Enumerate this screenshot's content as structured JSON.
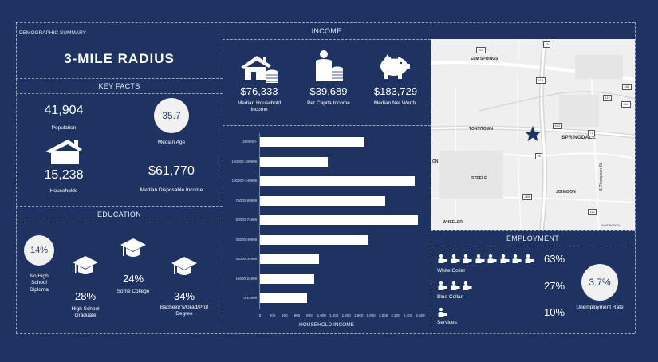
{
  "demographic": {
    "label": "DEMOGRAPHIC SUMMARY",
    "radius": "3-MILE RADIUS"
  },
  "key_facts": {
    "title": "KEY FACTS",
    "population": "41,904",
    "population_label": "Population",
    "median_age": "35.7",
    "median_age_label": "Median Age",
    "households": "15,238",
    "households_label": "Households",
    "median_disposable_income": "$61,770",
    "median_disposable_income_label": "Median Disposable Income"
  },
  "education": {
    "title": "EDUCATION",
    "no_hs": "14%",
    "no_hs_label": "No High School Diploma",
    "hs_grad": "28%",
    "hs_grad_label": "High School Graduate",
    "some_college": "24%",
    "some_college_label": "Some College",
    "bachelors": "34%",
    "bachelors_label": "Bachelor's/Grad/Prof Degree"
  },
  "income": {
    "title": "INCOME",
    "median_household": "$76,333",
    "median_household_label": "Median Household Income",
    "per_capita": "$39,689",
    "per_capita_label": "Per Capita Income",
    "net_worth": "$183,729",
    "net_worth_label": "Median Net Worth"
  },
  "chart_data": {
    "type": "bar",
    "orientation": "horizontal",
    "title": "",
    "xlabel": "HOUSEHOLD INCOME",
    "ylabel": "",
    "xlim": [
      0,
      2600
    ],
    "xticks": [
      "0",
      "200",
      "400",
      "600",
      "800",
      "1,000",
      "1,200",
      "1,400",
      "1,600",
      "1,800",
      "2,000",
      "2,200",
      "2,400",
      "2,600"
    ],
    "categories": [
      "200000+",
      "150000-199999",
      "100000-149999",
      "75000-99999",
      "50000-74999",
      "35000-49999",
      "25000-34999",
      "15000-24999",
      "0-14999"
    ],
    "values": [
      1690,
      1100,
      2510,
      2030,
      2560,
      1760,
      960,
      880,
      760
    ]
  },
  "employment": {
    "title": "EMPLOYMENT",
    "white_collar_pct": "63%",
    "white_collar_label": "White Collar",
    "blue_collar_pct": "27%",
    "blue_collar_label": "Blue Collar",
    "services_pct": "10%",
    "services_label": "Services",
    "unemployment": "3.7%",
    "unemployment_label": "Unemployment Rate"
  },
  "map": {
    "labels": {
      "elm_springs": "ELM SPRINGS",
      "tontitown": "TONTITOWN",
      "springdale": "SPRINGDALE",
      "steele": "STEELE",
      "johnson": "JOHNSON",
      "wheeler": "WHEELER",
      "huntingdon": "HUNTINGDON",
      "thompson": "S Thompson St",
      "on": "ON"
    },
    "shields": [
      "412",
      "612",
      "49",
      "112",
      "265",
      "412",
      "612",
      "71",
      "49",
      "265",
      "112"
    ],
    "accent": "#1e3362"
  },
  "colors": {
    "background": "#1e3362",
    "bar": "#ffffff",
    "circle": "#f1f1f1"
  }
}
